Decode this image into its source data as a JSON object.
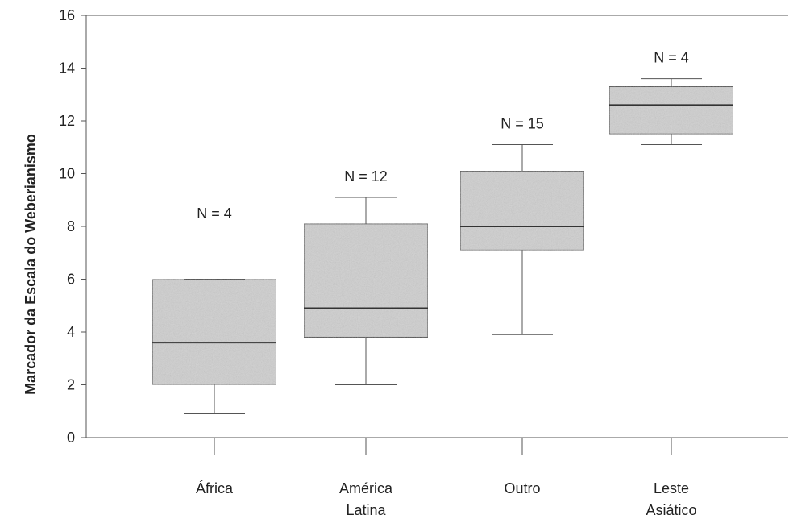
{
  "chart_data": {
    "type": "box",
    "ylabel": "Marcador da Escala do Weberianismo",
    "ylim": [
      0,
      16
    ],
    "yticks": [
      0,
      2,
      4,
      6,
      8,
      10,
      12,
      14,
      16
    ],
    "grid": false,
    "box_color": "#cfcfcf",
    "categories": [
      {
        "lines": [
          "África"
        ],
        "n_label": "N = 4",
        "min": 0.9,
        "q1": 2.0,
        "median": 3.6,
        "q3": 6.0,
        "max": 6.0
      },
      {
        "lines": [
          "América",
          "Latina"
        ],
        "n_label": "N = 12",
        "min": 2.0,
        "q1": 3.8,
        "median": 4.9,
        "q3": 8.1,
        "max": 9.1
      },
      {
        "lines": [
          "Outro"
        ],
        "n_label": "N = 15",
        "min": 3.9,
        "q1": 7.1,
        "median": 8.0,
        "q3": 10.1,
        "max": 11.1
      },
      {
        "lines": [
          "Leste",
          "Asiático"
        ],
        "n_label": "N = 4",
        "min": 11.1,
        "q1": 11.5,
        "median": 12.6,
        "q3": 13.3,
        "max": 13.6
      }
    ]
  }
}
